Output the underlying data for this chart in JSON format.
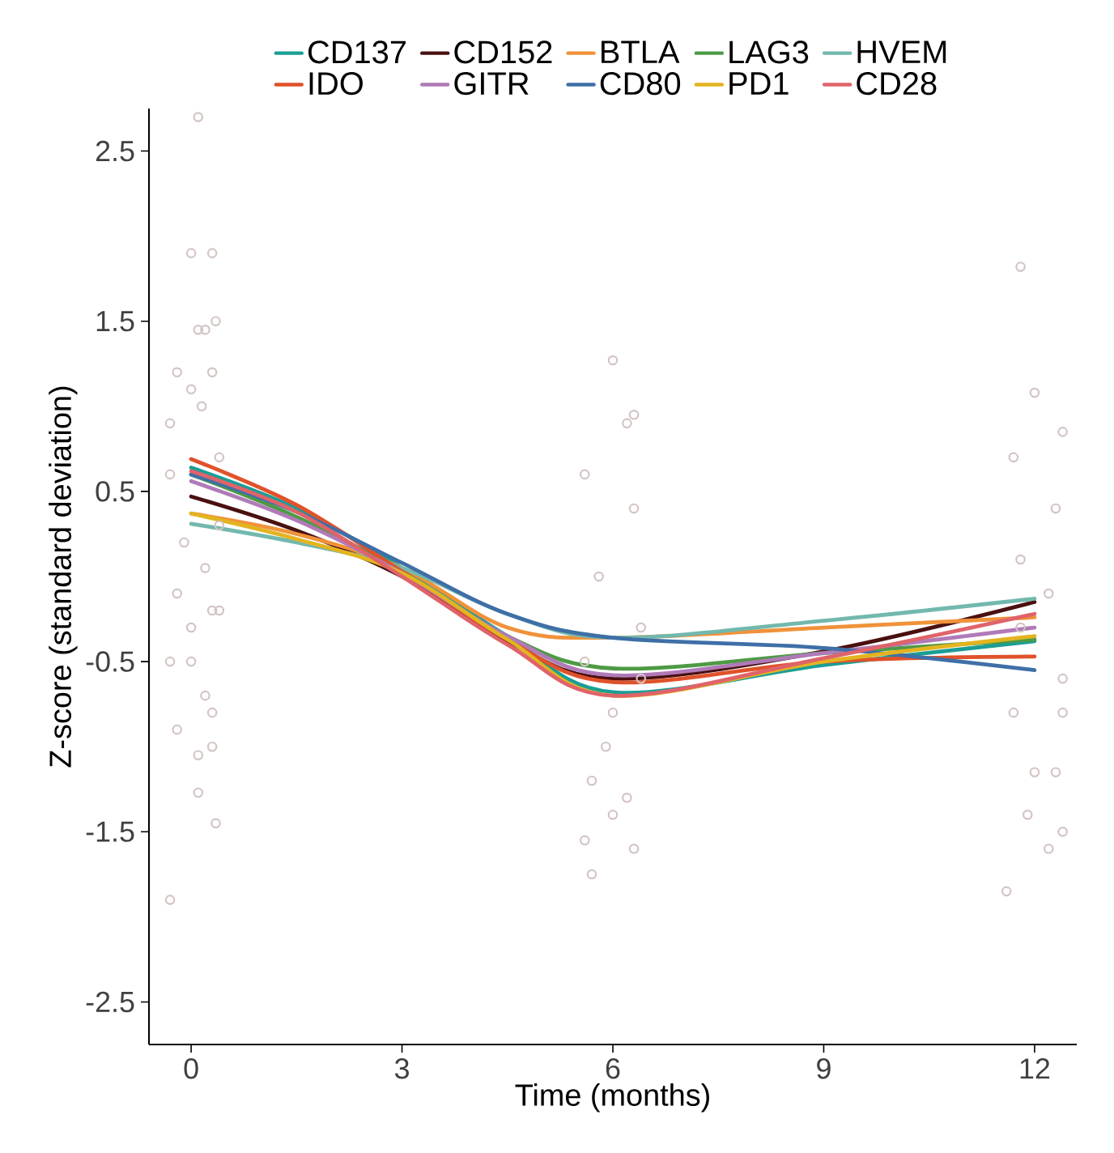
{
  "chart_data": {
    "type": "line",
    "xlabel": "Time (months)",
    "ylabel": "Z-score (standard deviation)",
    "xlim": [
      -0.6,
      12.6
    ],
    "ylim": [
      -2.75,
      2.75
    ],
    "xticks": [
      0,
      3,
      6,
      9,
      12
    ],
    "yticks": [
      -2.5,
      -1.5,
      -0.5,
      0.5,
      1.5,
      2.5
    ],
    "grid": false,
    "legend": "top",
    "series": [
      {
        "type": "scatter",
        "marker": "circle",
        "color": "#d4c4c4",
        "x": [
          -0.3,
          0.1,
          0.2,
          0.3,
          0.35,
          0.0,
          0.3,
          0.1,
          -0.2,
          0.0,
          0.15,
          -0.3,
          0.4,
          -0.2,
          0.0,
          0.3,
          -0.3,
          0.0,
          0.3,
          0.2,
          -0.2,
          0.1,
          0.3,
          0.1,
          0.35,
          -0.3,
          0.4,
          -0.1,
          0.2,
          0.4,
          5.6,
          6.0,
          6.2,
          6.3,
          5.8,
          6.3,
          5.6,
          6.0,
          6.4,
          5.7,
          6.0,
          6.3,
          5.6,
          5.7,
          6.2,
          5.9,
          6.4,
          11.8,
          12.0,
          12.4,
          11.7,
          12.3,
          11.8,
          12.2,
          11.7,
          12.4,
          12.0,
          12.3,
          11.6,
          12.4,
          12.2,
          11.8,
          12.4,
          11.9
        ],
        "values": [
          0.9,
          1.45,
          1.45,
          1.2,
          1.5,
          1.9,
          1.9,
          2.7,
          1.2,
          1.1,
          1.0,
          0.6,
          0.3,
          -0.1,
          -0.3,
          -0.2,
          -0.5,
          -0.5,
          -0.8,
          -0.7,
          -0.9,
          -1.05,
          -1.0,
          -1.27,
          -1.45,
          -1.9,
          -0.2,
          0.2,
          0.05,
          0.7,
          0.6,
          1.27,
          0.9,
          0.95,
          0.0,
          0.4,
          -0.5,
          -0.8,
          -0.6,
          -1.2,
          -1.4,
          -1.6,
          -1.55,
          -1.75,
          -1.3,
          -1.0,
          -0.3,
          1.82,
          1.08,
          0.85,
          0.7,
          0.4,
          0.1,
          -0.1,
          -0.8,
          -0.8,
          -1.15,
          -1.15,
          -1.85,
          -1.5,
          -1.6,
          -0.3,
          -0.6,
          -1.4
        ]
      },
      {
        "name": "CD137",
        "color": "#1a9e95",
        "x": [
          0,
          1.5,
          3,
          4.5,
          6,
          9,
          12
        ],
        "values": [
          0.64,
          0.4,
          0.05,
          -0.35,
          -0.68,
          -0.52,
          -0.38
        ]
      },
      {
        "name": "CD152",
        "color": "#4a1010",
        "x": [
          0,
          1.5,
          3,
          4.5,
          6,
          9,
          12
        ],
        "values": [
          0.47,
          0.27,
          0.0,
          -0.38,
          -0.6,
          -0.44,
          -0.15
        ]
      },
      {
        "name": "BTLA",
        "color": "#f0923a",
        "x": [
          0,
          1.5,
          3,
          4.5,
          6,
          9,
          12
        ],
        "values": [
          0.37,
          0.25,
          0.05,
          -0.3,
          -0.36,
          -0.3,
          -0.24
        ]
      },
      {
        "name": "LAG3",
        "color": "#4e9a45",
        "x": [
          0,
          1.5,
          3,
          4.5,
          6,
          9,
          12
        ],
        "values": [
          0.6,
          0.35,
          0.03,
          -0.35,
          -0.54,
          -0.45,
          -0.37
        ]
      },
      {
        "name": "HVEM",
        "color": "#72b8ae",
        "x": [
          0,
          1.5,
          3,
          4.5,
          6,
          9,
          12
        ],
        "values": [
          0.31,
          0.2,
          0.05,
          -0.22,
          -0.36,
          -0.26,
          -0.13
        ]
      },
      {
        "name": "IDO",
        "color": "#e0522a",
        "x": [
          0,
          1.5,
          3,
          4.5,
          6,
          9,
          12
        ],
        "values": [
          0.69,
          0.42,
          0.03,
          -0.37,
          -0.62,
          -0.5,
          -0.47
        ]
      },
      {
        "name": "GITR",
        "color": "#b07ab8",
        "x": [
          0,
          1.5,
          3,
          4.5,
          6,
          9,
          12
        ],
        "values": [
          0.56,
          0.33,
          0.02,
          -0.35,
          -0.58,
          -0.45,
          -0.3
        ]
      },
      {
        "name": "CD80",
        "color": "#3f6fa6",
        "x": [
          0,
          1.5,
          3,
          4.5,
          6,
          9,
          12
        ],
        "values": [
          0.6,
          0.38,
          0.08,
          -0.22,
          -0.36,
          -0.42,
          -0.55
        ]
      },
      {
        "name": "PD1",
        "color": "#e3b420",
        "x": [
          0,
          1.5,
          3,
          4.5,
          6,
          9,
          12
        ],
        "values": [
          0.37,
          0.22,
          0.02,
          -0.37,
          -0.7,
          -0.5,
          -0.35
        ]
      },
      {
        "name": "CD28",
        "color": "#e0636a",
        "x": [
          0,
          1.5,
          3,
          4.5,
          6,
          9,
          12
        ],
        "values": [
          0.62,
          0.38,
          0.0,
          -0.4,
          -0.7,
          -0.48,
          -0.22
        ]
      }
    ]
  }
}
